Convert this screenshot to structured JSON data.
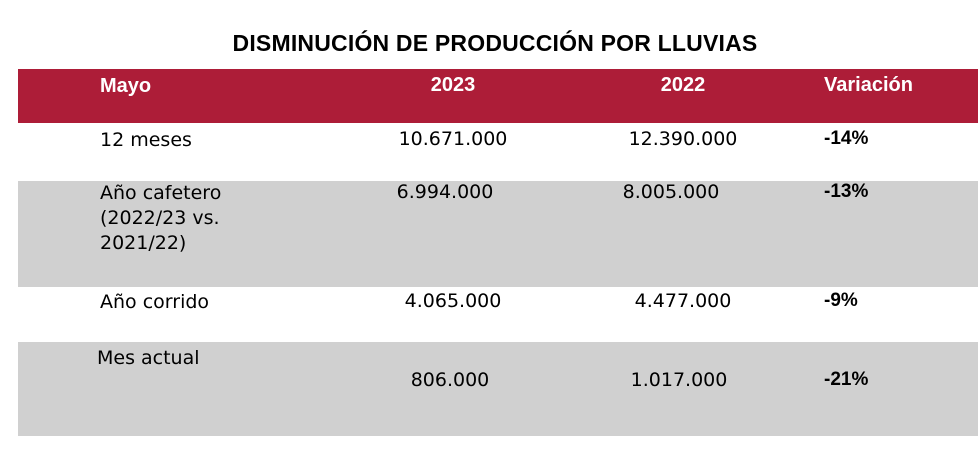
{
  "title": "DISMINUCIÓN DE PRODUCCIÓN POR LLUVIAS",
  "colors": {
    "header_bg": "#ad1d38",
    "row_alt_bg": "#d0d0d0",
    "header_text": "#ffffff"
  },
  "table": {
    "headers": [
      "Mayo",
      "2023",
      "2022",
      "Variación"
    ],
    "rows": [
      {
        "label": "12 meses",
        "v2023": "10.671.000",
        "v2022": "12.390.000",
        "variation": "-14%"
      },
      {
        "label": "Año cafetero (2022/23 vs. 2021/22)",
        "v2023": "6.994.000",
        "v2022": "8.005.000",
        "variation": "-13%"
      },
      {
        "label": "Año corrido",
        "v2023": "4.065.000",
        "v2022": "4.477.000",
        "variation": "-9%"
      },
      {
        "label": "Mes actual",
        "v2023": "806.000",
        "v2022": "1.017.000",
        "variation": "-21%"
      }
    ]
  }
}
